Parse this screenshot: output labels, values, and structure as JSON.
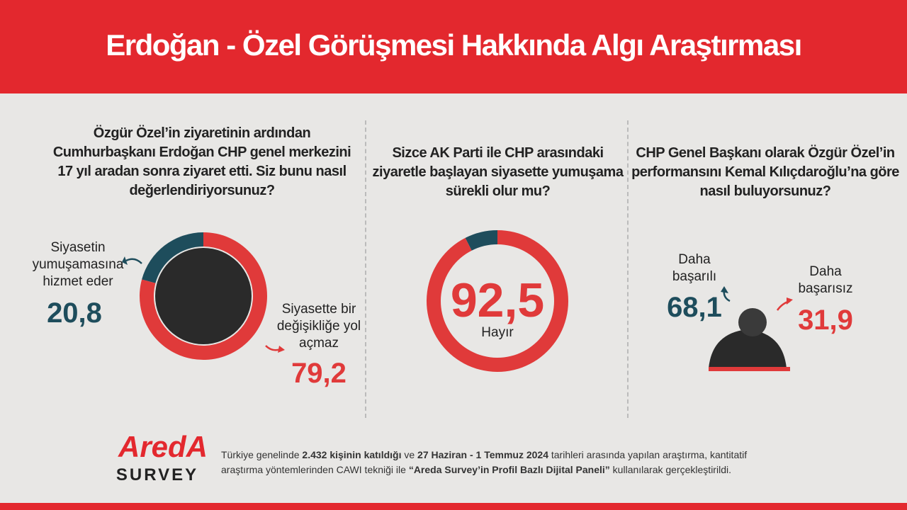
{
  "header": {
    "title": "Erdoğan - Özel Görüşmesi Hakkında Algı Araştırması"
  },
  "chart_data": [
    {
      "type": "pie",
      "title": "Özgür Özel’in ziyaretinin ardından Cumhurbaşkanı Erdoğan CHP genel merkezini 17 yıl aradan sonra ziyaret etti. Siz bunu nasıl değerlendiriyorsunuz?",
      "categories": [
        "Siyasetin yumuşamasına hizmet eder",
        "Siyasette bir değişikliğe yol açmaz"
      ],
      "values": [
        20.8,
        79.2
      ],
      "value_labels": [
        "20,8",
        "79,2"
      ],
      "colors": [
        "#1e4d5c",
        "#e03a3a"
      ]
    },
    {
      "type": "pie",
      "title": "Sizce AK Parti ile CHP arasındaki ziyaretle başlayan siyasette yumuşama sürekli olur mu?",
      "categories": [
        null,
        "Hayır"
      ],
      "values": [
        7.5,
        92.5
      ],
      "value_labels": [
        null,
        "92,5"
      ],
      "colors": [
        "#1e4d5c",
        "#e03a3a"
      ]
    },
    {
      "type": "comparison",
      "title": "CHP Genel Başkanı olarak Özgür Özel’in performansını Kemal Kılıçdaroğlu’na göre nasıl buluyorsunuz?",
      "categories": [
        "Daha başarılı",
        "Daha başarısız"
      ],
      "values": [
        68.1,
        31.9
      ],
      "value_labels": [
        "68,1",
        "31,9"
      ],
      "colors": [
        "#1e4d5c",
        "#e03a3a"
      ]
    }
  ],
  "logo": {
    "name": "AredA",
    "sub": "SURVEY"
  },
  "footer": {
    "parts": [
      {
        "text": "Türkiye genelinde ",
        "bold": false
      },
      {
        "text": "2.432 kişinin katıldığı",
        "bold": true
      },
      {
        "text": " ve ",
        "bold": false
      },
      {
        "text": "27 Haziran - 1 Temmuz 2024",
        "bold": true
      },
      {
        "text": " tarihleri arasında yapılan araştırma, kantitatif araştırma yöntemlerinden CAWI tekniği ile ",
        "bold": false
      },
      {
        "text": "“Areda Survey’in Profil Bazlı Dijital Paneli”",
        "bold": true
      },
      {
        "text": " kullanılarak gerçekleştirildi.",
        "bold": false
      }
    ]
  }
}
